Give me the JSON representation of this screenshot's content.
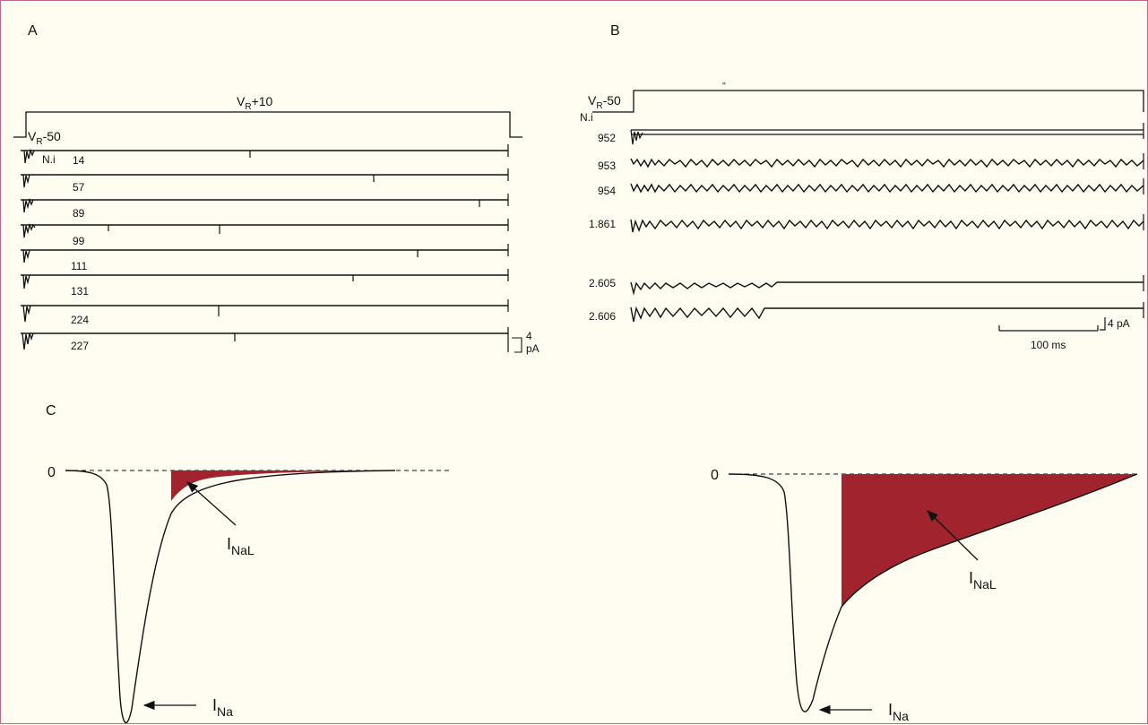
{
  "panels": {
    "a": {
      "letter": "A",
      "step_top": "V",
      "step_top_sub": "R",
      "step_top_suffix": "+10",
      "step_base": "V",
      "step_base_sub": "R",
      "step_base_suffix": "-50",
      "trace_header": "N.i",
      "trace_ids": [
        "14",
        "57",
        "89",
        "99",
        "111",
        "131",
        "224",
        "227"
      ],
      "scale_value": "4",
      "scale_unit": "pA"
    },
    "b": {
      "letter": "B",
      "step_base": "V",
      "step_base_sub": "R",
      "step_base_suffix": "-50",
      "trace_header": "N.i",
      "trace_ids": [
        "952",
        "953",
        "954",
        "1.861",
        "2.605",
        "2.606"
      ],
      "current_scale": "4 pA",
      "time_scale": "100 ms"
    },
    "c": {
      "letter": "C",
      "left_zero": "0",
      "right_zero": "0",
      "peak_label": "I",
      "peak_label_sub": "Na",
      "late_label": "I",
      "late_label_sub": "NaL"
    }
  },
  "colors": {
    "late_current_fill": "#a0232e",
    "ink": "#111111",
    "background": "#fffdf2"
  }
}
